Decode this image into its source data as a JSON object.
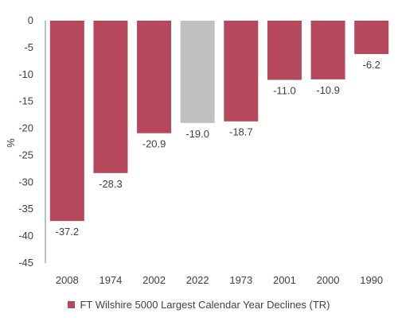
{
  "chart_data": {
    "type": "bar",
    "categories": [
      "2008",
      "1974",
      "2002",
      "2022",
      "1973",
      "2001",
      "2000",
      "1990"
    ],
    "values": [
      -37.2,
      -28.3,
      -20.9,
      -19.0,
      -18.7,
      -11.0,
      -10.9,
      -6.2
    ],
    "data_labels": [
      "-37.2",
      "-28.3",
      "-20.9",
      "-19.0",
      "-18.7",
      "-11.0",
      "-10.9",
      "-6.2"
    ],
    "series": [
      {
        "name": "FT Wilshire 5000 Largest Calendar Year Declines (TR)",
        "values": [
          -37.2,
          -28.3,
          -20.9,
          -19.0,
          -18.7,
          -11.0,
          -10.9,
          -6.2
        ]
      }
    ],
    "highlight_category": "2022",
    "colors": {
      "bar": "#b5495b",
      "highlight": "#c0c0c0"
    },
    "ylabel": "%",
    "xlabel": "",
    "ylim": [
      -45,
      0
    ],
    "y_ticks": [
      0,
      -5,
      -10,
      -15,
      -20,
      -25,
      -30,
      -35,
      -40,
      -45
    ],
    "grid": false,
    "legend_position": "bottom"
  }
}
